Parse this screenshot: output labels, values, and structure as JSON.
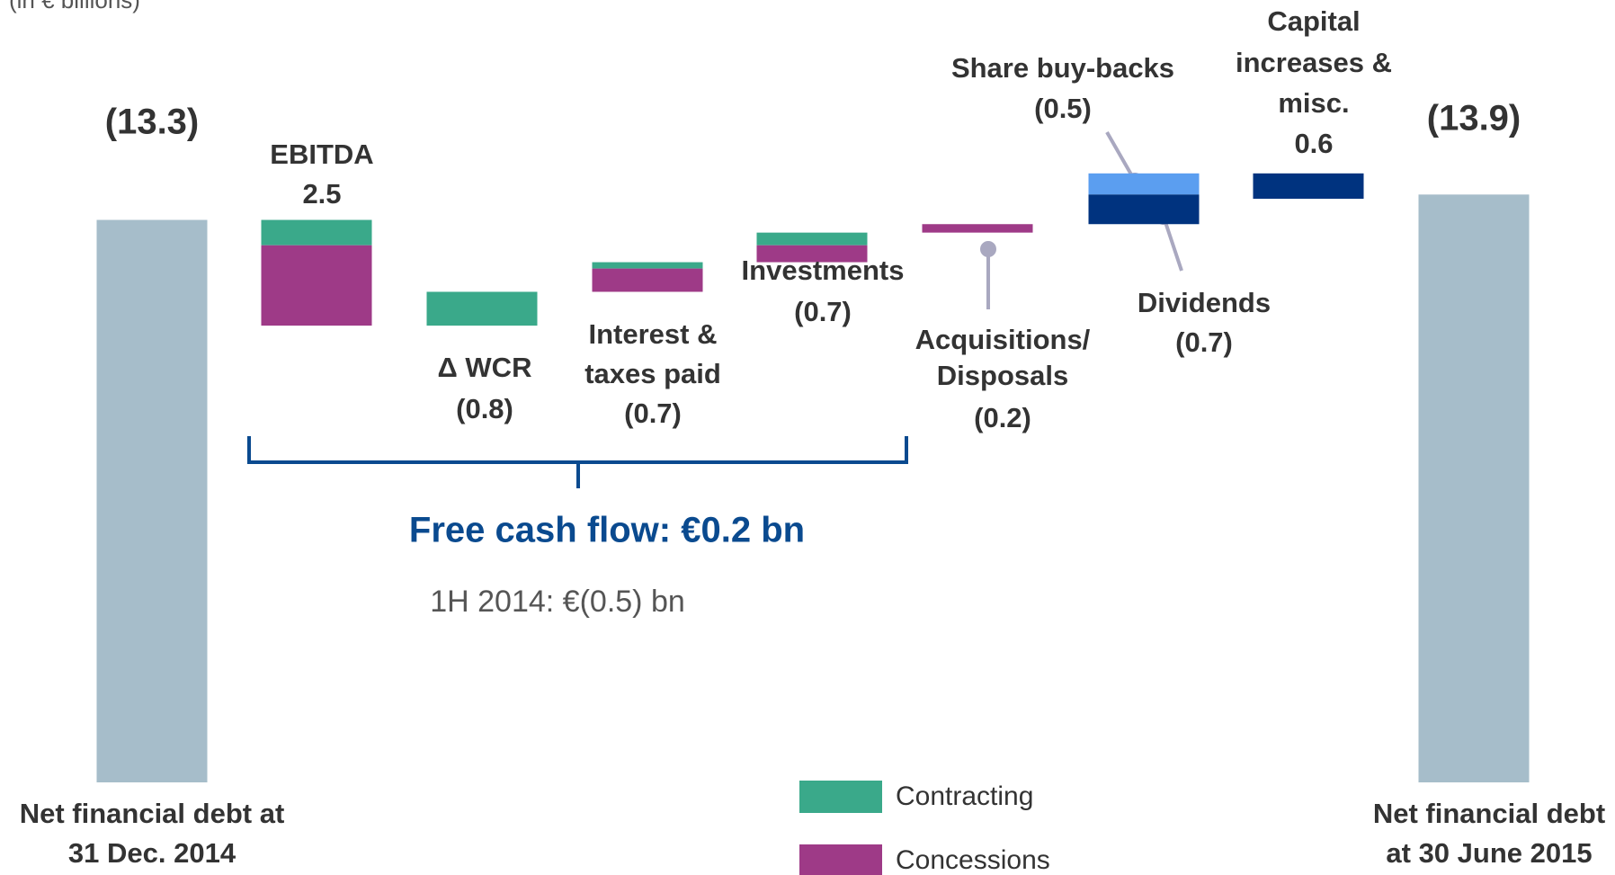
{
  "chart_data": {
    "type": "waterfall",
    "note": "(in € billions)",
    "ylim": [
      -18.5,
      0
    ],
    "start": {
      "label": [
        "Net financial debt at",
        "31 Dec. 2014"
      ],
      "value": -13.3,
      "value_label": "(13.3)",
      "color": "#a6bdca"
    },
    "steps": [
      {
        "label": [
          "EBITDA"
        ],
        "value": 2.5,
        "parts": [
          {
            "value": 0.6,
            "color": "#3aa98a"
          },
          {
            "value": 1.9,
            "color": "#9e3a87"
          }
        ]
      },
      {
        "label": [
          "Δ WCR"
        ],
        "value": -0.8,
        "value_label": "(0.8)",
        "color": "#3aa98a"
      },
      {
        "label": [
          "Interest &",
          "taxes paid"
        ],
        "value": -0.7,
        "value_label": "(0.7)",
        "parts": [
          {
            "value": -0.15,
            "color": "#3aa98a"
          },
          {
            "value": -0.55,
            "color": "#9e3a87"
          }
        ]
      },
      {
        "label": [
          "Investments"
        ],
        "value": -0.7,
        "value_label": "(0.7)",
        "parts": [
          {
            "value": -0.3,
            "color": "#3aa98a"
          },
          {
            "value": -0.4,
            "color": "#9e3a87"
          }
        ]
      },
      {
        "label": [
          "Acquisitions/",
          "Disposals"
        ],
        "value": -0.2,
        "value_label": "(0.2)",
        "color": "#9e3a87"
      },
      {
        "parts": [
          {
            "label": [
              "Share buy-backs"
            ],
            "value": -0.5,
            "value_label": "(0.5)",
            "color": "#5b9ef0"
          },
          {
            "label": [
              "Dividends"
            ],
            "value": -0.7,
            "value_label": "(0.7)",
            "color": "#00337f"
          }
        ]
      },
      {
        "label": [
          "Capital",
          "increases &",
          "misc."
        ],
        "value": 0.6,
        "color": "#00337f"
      }
    ],
    "end": {
      "label": [
        "Net financial debt",
        "at 30 June 2015"
      ],
      "value": -13.9,
      "value_label": "(13.9)",
      "color": "#a6bdca"
    },
    "legend": [
      {
        "name": "Contracting",
        "color": "#3aa98a"
      },
      {
        "name": "Concessions",
        "color": "#9e3a87"
      }
    ],
    "annotations": {
      "free_cash_flow": "Free cash flow: €0.2 bn",
      "comparison": "1H 2014: €(0.5) bn"
    }
  }
}
